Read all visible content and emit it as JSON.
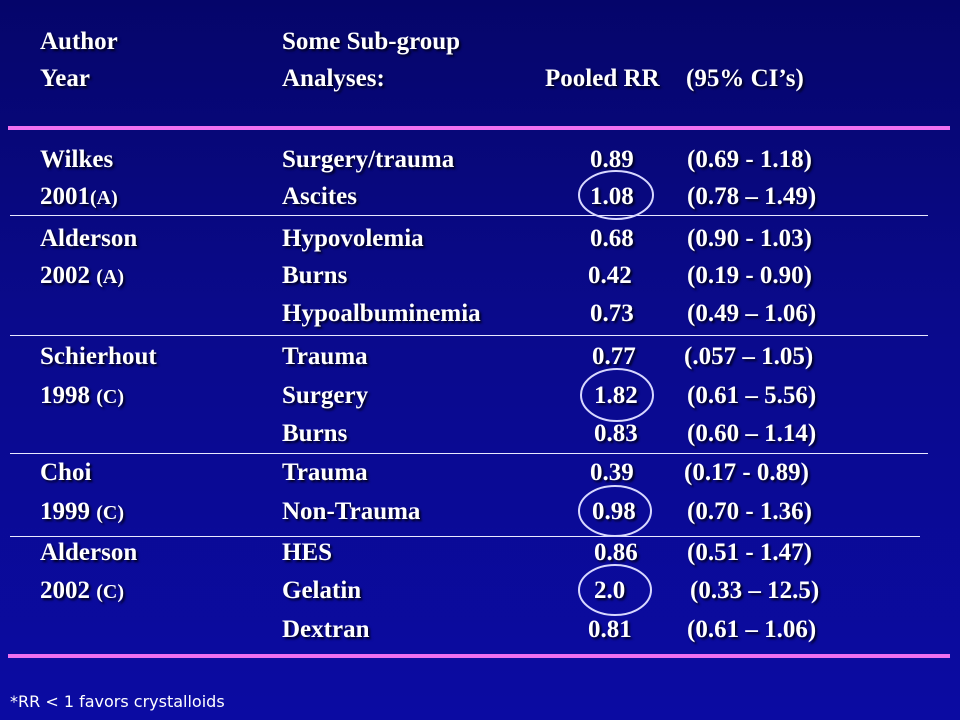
{
  "header": {
    "author": "Author",
    "year": "Year",
    "subgroup_line1": "Some Sub-group",
    "subgroup_line2": "Analyses:",
    "pooled_rr": "Pooled RR",
    "ci": "(95% CI’s)"
  },
  "rows": [
    {
      "author": "Wilkes",
      "subgroup": "Surgery/trauma",
      "rr": "0.89",
      "ci": "(0.69 - 1.18)"
    },
    {
      "year": "2001",
      "code": "(A)",
      "subgroup": "Ascites",
      "rr": "1.08",
      "ci": "(0.78 – 1.49)",
      "circled": true
    },
    {
      "author": "Alderson",
      "subgroup": "Hypovolemia",
      "rr": "0.68",
      "ci": "(0.90 - 1.03)"
    },
    {
      "year": "2002",
      "code": "(A)",
      "subgroup": "Burns",
      "rr": "0.42",
      "ci": "(0.19 - 0.90)"
    },
    {
      "subgroup": "Hypoalbuminemia",
      "rr": "0.73",
      "ci": "(0.49 – 1.06)"
    },
    {
      "author": "Schierhout",
      "subgroup": "Trauma",
      "rr": "0.77",
      "ci": "(.057 – 1.05)"
    },
    {
      "year": "1998",
      "code": "(C)",
      "subgroup": "Surgery",
      "rr": "1.82",
      "ci": "(0.61 – 5.56)",
      "circled": true
    },
    {
      "subgroup": "Burns",
      "rr": "0.83",
      "ci": "(0.60 – 1.14)"
    },
    {
      "author": "Choi",
      "subgroup": "Trauma",
      "rr": "0.39",
      "ci": "(0.17 - 0.89)"
    },
    {
      "year": "1999",
      "code": "(C)",
      "subgroup": "Non-Trauma",
      "rr": "0.98",
      "ci": "(0.70 - 1.36)",
      "circled": true
    },
    {
      "author": "Alderson",
      "subgroup": "HES",
      "rr": "0.86",
      "ci": "(0.51 - 1.47)"
    },
    {
      "year": "2002",
      "code": "(C)",
      "subgroup": "Gelatin",
      "rr": "2.0",
      "ci": "(0.33 – 12.5)",
      "circled": true
    },
    {
      "subgroup": "Dextran",
      "rr": "0.81",
      "ci": "(0.61 – 1.06)"
    }
  ],
  "footnote": "*RR < 1 favors crystalloids",
  "colors": {
    "background": "#0a0a8c",
    "accent_rule": "#f070f0",
    "text": "#ffffff"
  }
}
